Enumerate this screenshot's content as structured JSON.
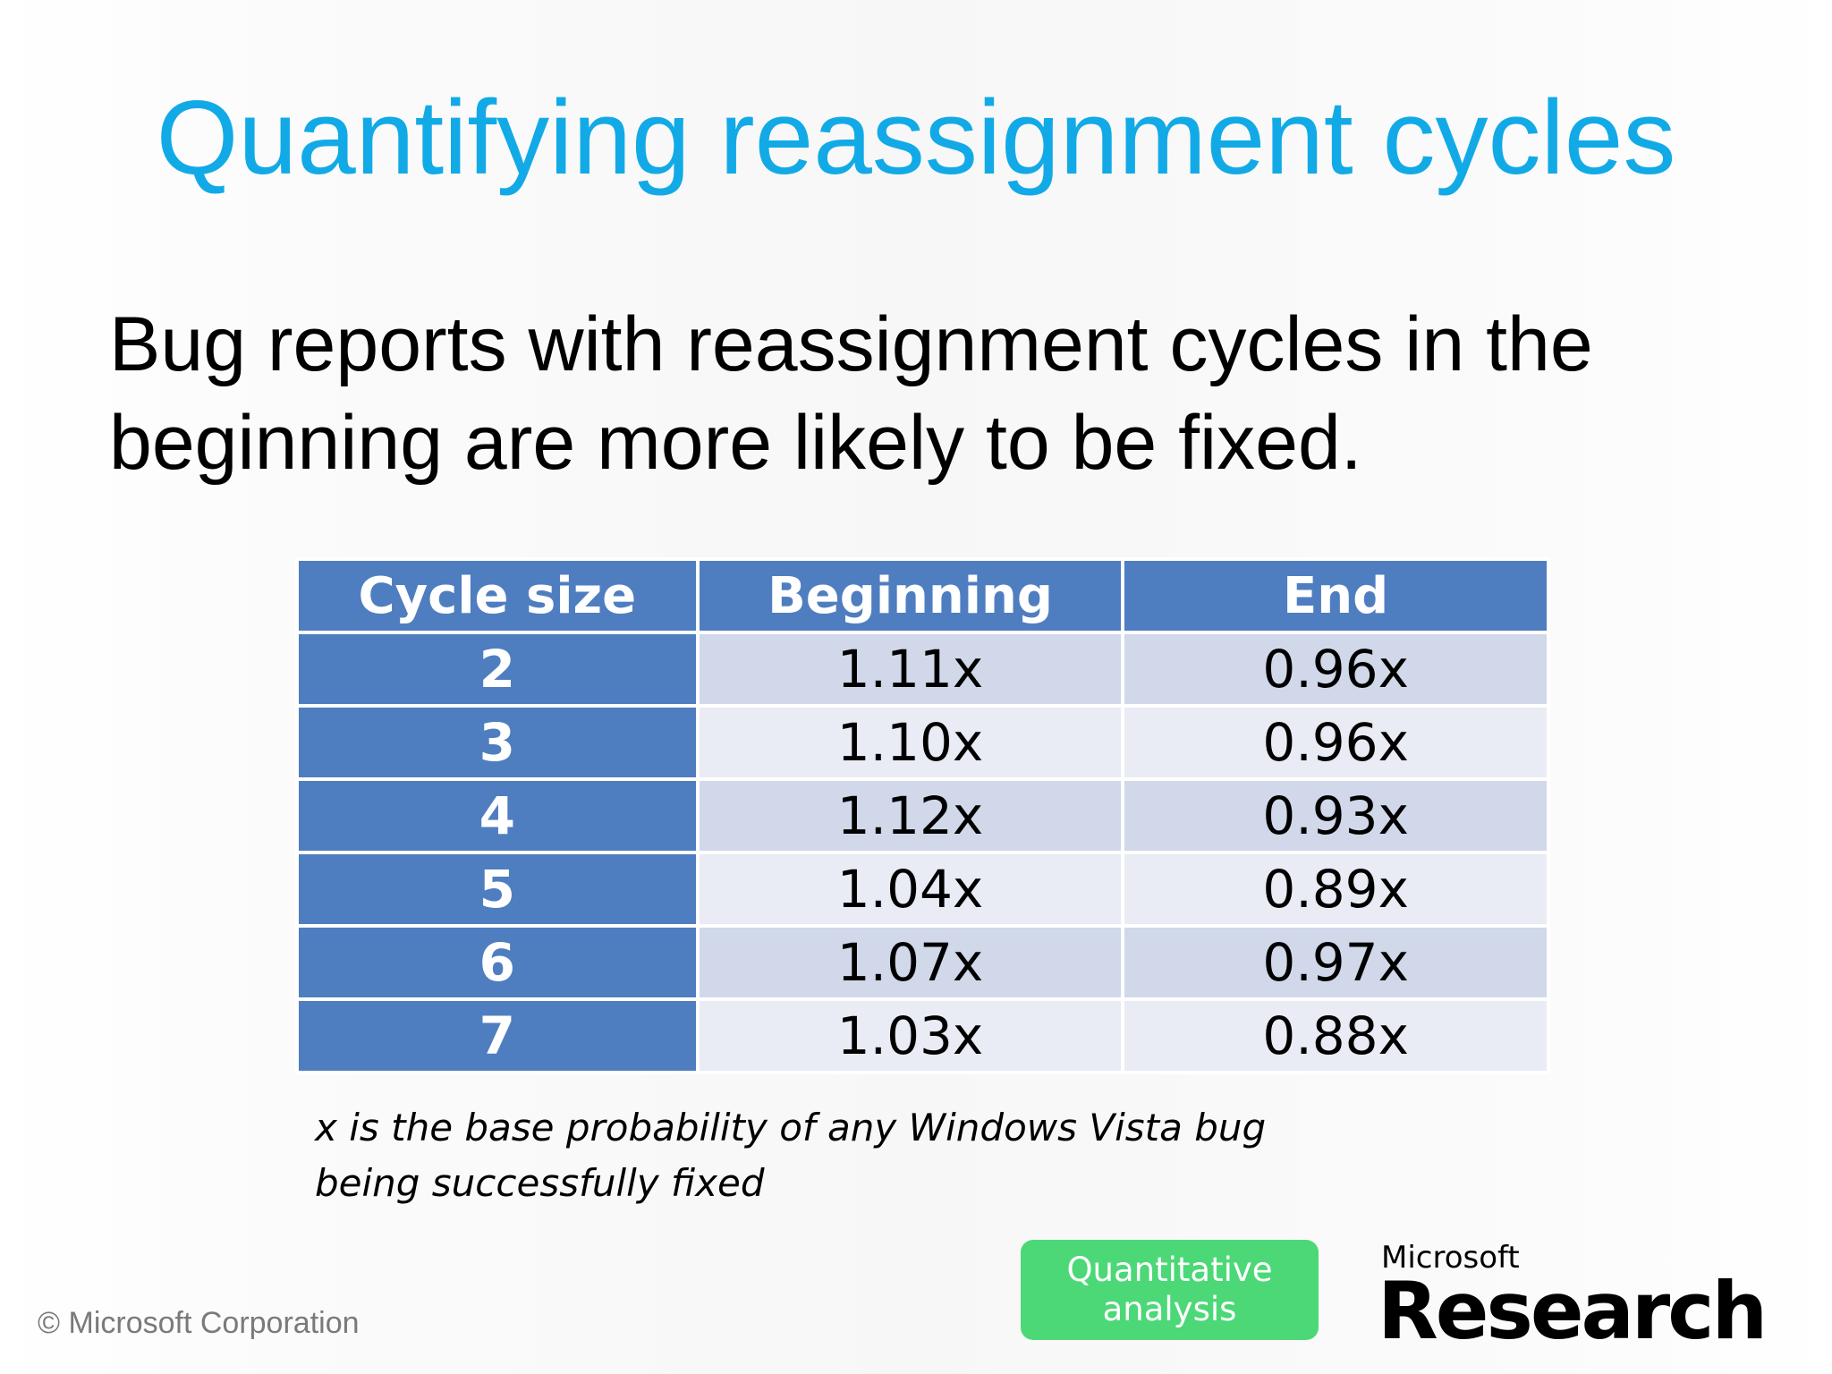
{
  "slide": {
    "title": "Quantifying reassignment cycles",
    "body_line1": "Bug reports with reassignment cycles in the",
    "body_line2": "beginning are more likely to be fixed.",
    "footnote_line1": "x is the base probability of any Windows Vista bug",
    "footnote_line2": "being successfully fixed",
    "copyright": "© Microsoft Corporation"
  },
  "table": {
    "headers": [
      "Cycle size",
      "Beginning",
      "End"
    ],
    "rows": [
      [
        "2",
        "1.11x",
        "0.96x"
      ],
      [
        "3",
        "1.10x",
        "0.96x"
      ],
      [
        "4",
        "1.12x",
        "0.93x"
      ],
      [
        "5",
        "1.04x",
        "0.89x"
      ],
      [
        "6",
        "1.07x",
        "0.97x"
      ],
      [
        "7",
        "1.03x",
        "0.88x"
      ]
    ]
  },
  "badge": {
    "line1": "Quantitative",
    "line2": "analysis"
  },
  "logo": {
    "top": "Microsoft",
    "main": "Research"
  },
  "colors": {
    "title": "#12aae6",
    "table_header": "#4f7ec0",
    "row_odd": "#d0d8e9",
    "row_even": "#e9ecf4",
    "badge": "#4cd877"
  }
}
